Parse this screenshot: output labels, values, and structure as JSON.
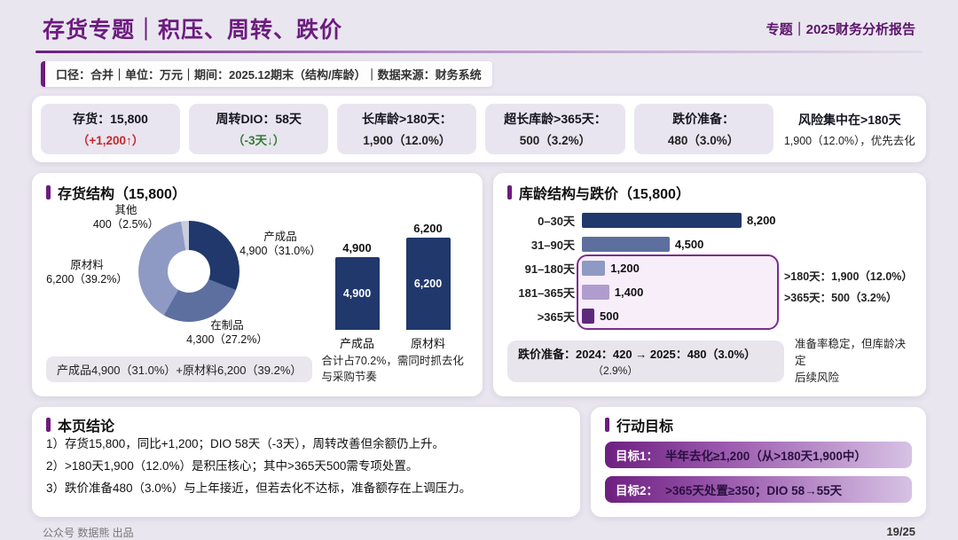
{
  "header": {
    "title": "存货专题｜积压、周转、跌价",
    "badge": "专题｜2025财务分析报告",
    "meta": "口径：合并｜单位：万元｜期间：2025.12期末（结构/库龄）｜数据来源：财务系统"
  },
  "kpis": [
    {
      "label": "存货：15,800",
      "sub": "（+1,200↑）"
    },
    {
      "label": "周转DIO：58天",
      "sub": "（-3天↓）"
    },
    {
      "label": "长库龄>180天：",
      "sub": "1,900（12.0%）"
    },
    {
      "label": "超长库龄>365天：",
      "sub": "500（3.2%）"
    },
    {
      "label": "跌价准备：",
      "sub": "480（3.0%）"
    }
  ],
  "kpi_note": {
    "line1": "风险集中在>180天",
    "line2": "1,900（12.0%），优先去化"
  },
  "structure_panel": {
    "title": "存货结构（15,800）",
    "donut_labels": {
      "other": {
        "name": "其他",
        "value": "400（2.5%）"
      },
      "finished": {
        "name": "产成品",
        "value": "4,900（31.0%）"
      },
      "raw": {
        "name": "原材料",
        "value": "6,200（39.2%）"
      },
      "wip": {
        "name": "在制品",
        "value": "4,300（27.2%）"
      }
    },
    "bars": [
      {
        "category": "产成品",
        "value": "4,900"
      },
      {
        "category": "原材料",
        "value": "6,200"
      }
    ],
    "note_pill": "产成品4,900（31.0%）+原材料6,200（39.2%）",
    "note_text": "合计占70.2%，需同时抓去化与采购节奏"
  },
  "aging_panel": {
    "title": "库龄结构与跌价（15,800）",
    "rows": [
      {
        "label": "0–30天",
        "value": "8,200"
      },
      {
        "label": "31–90天",
        "value": "4,500"
      },
      {
        "label": "91–180天",
        "value": "1,200"
      },
      {
        "label": "181–365天",
        "value": "1,400"
      },
      {
        "label": ">365天",
        "value": "500"
      }
    ],
    "side_note_1": ">180天：1,900（12.0%）",
    "side_note_2": ">365天：500（3.2%）",
    "provision_line1": "跌价准备：2024：420 → 2025：480（3.0%）",
    "provision_line2": "（2.9%）",
    "provision_note_1": "准备率稳定，但库龄决定",
    "provision_note_2": "后续风险"
  },
  "conclusion": {
    "title": "本页结论",
    "items": [
      "1）存货15,800，同比+1,200；DIO 58天（-3天），周转改善但余额仍上升。",
      "2）>180天1,900（12.0%）是积压核心；其中>365天500需专项处置。",
      "3）跌价准备480（3.0%）与上年接近，但若去化不达标，准备额存在上调压力。"
    ]
  },
  "goals": {
    "title": "行动目标",
    "items": [
      {
        "label": "目标1：",
        "text": "半年去化≥1,200（从>180天1,900中）"
      },
      {
        "label": "目标2：",
        "text": ">365天处置≥350；DIO 58→55天"
      }
    ]
  },
  "footer": {
    "left": "公众号 数据熊 出品",
    "right": "19/25"
  },
  "colors": {
    "accent_purple": "#6d1b7f",
    "navy": "#20386b",
    "up_red": "#c62828",
    "down_green": "#2e7d32",
    "highlight_border": "#7b2d8e"
  },
  "chart_data": [
    {
      "type": "pie",
      "title": "存货结构（15,800）",
      "labels": [
        "产成品",
        "在制品",
        "原材料",
        "其他"
      ],
      "values": [
        4900,
        4300,
        6200,
        400
      ],
      "percents": [
        31.0,
        27.2,
        39.2,
        2.5
      ],
      "colors": [
        "#20386b",
        "#5d6f9f",
        "#8e9ac4",
        "#c9cddd"
      ],
      "total": 15800,
      "donut": true
    },
    {
      "type": "bar",
      "categories": [
        "产成品",
        "原材料"
      ],
      "values": [
        4900,
        6200
      ],
      "colors": [
        "#20386b",
        "#20386b"
      ],
      "ylim": [
        0,
        6200
      ]
    },
    {
      "type": "bar",
      "orientation": "horizontal",
      "title": "库龄结构与跌价（15,800）",
      "categories": [
        "0–30天",
        "31–90天",
        "91–180天",
        "181–365天",
        ">365天"
      ],
      "values": [
        8200,
        4500,
        1200,
        1400,
        500
      ],
      "colors": [
        "#20386b",
        "#5d6f9f",
        "#8e9ac4",
        "#b09cce",
        "#5c2a7d"
      ],
      "annotations": [
        ">180天：1,900（12.0%）",
        ">365天：500（3.2%）"
      ]
    }
  ]
}
